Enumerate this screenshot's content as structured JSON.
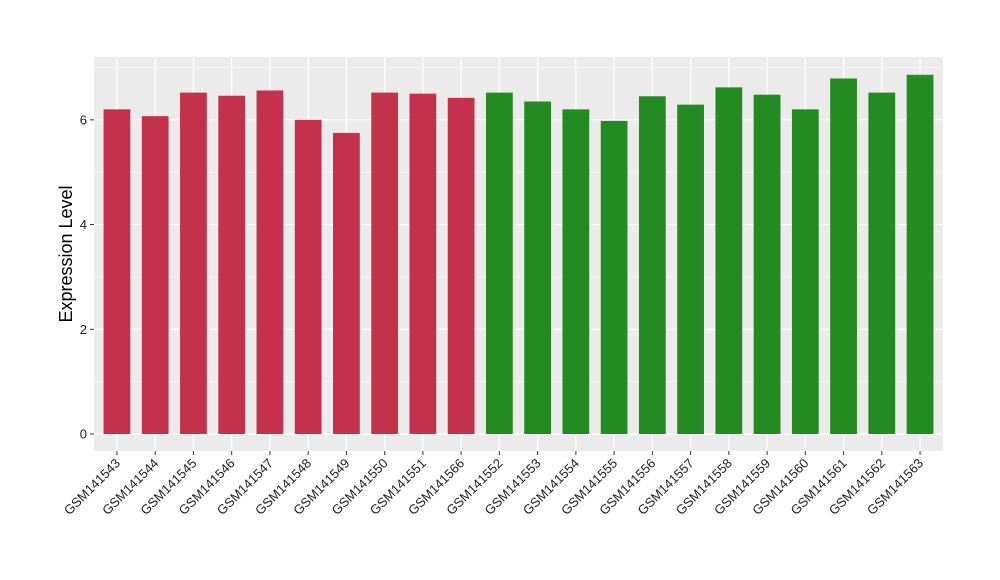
{
  "chart_data": {
    "type": "bar",
    "title": "",
    "xlabel": "",
    "ylabel": "Expression Level",
    "ylim": [
      0,
      7.2
    ],
    "yticks": [
      0,
      2,
      4,
      6
    ],
    "grid": true,
    "legend": "none",
    "categories": [
      "GSM141543",
      "GSM141544",
      "GSM141545",
      "GSM141546",
      "GSM141547",
      "GSM141548",
      "GSM141549",
      "GSM141550",
      "GSM141551",
      "GSM141566",
      "GSM141552",
      "GSM141553",
      "GSM141554",
      "GSM141555",
      "GSM141556",
      "GSM141557",
      "GSM141558",
      "GSM141559",
      "GSM141560",
      "GSM141561",
      "GSM141562",
      "GSM141563"
    ],
    "values": [
      6.2,
      6.07,
      6.52,
      6.46,
      6.56,
      6.0,
      5.75,
      6.52,
      6.5,
      6.42,
      6.52,
      6.35,
      6.2,
      5.98,
      6.45,
      6.29,
      6.62,
      6.48,
      6.2,
      6.79,
      6.52,
      6.86
    ],
    "bar_colors": [
      "#c4314b",
      "#c4314b",
      "#c4314b",
      "#c4314b",
      "#c4314b",
      "#c4314b",
      "#c4314b",
      "#c4314b",
      "#c4314b",
      "#c4314b",
      "#228b22",
      "#228b22",
      "#228b22",
      "#228b22",
      "#228b22",
      "#228b22",
      "#228b22",
      "#228b22",
      "#228b22",
      "#228b22",
      "#228b22",
      "#228b22"
    ],
    "panel_background": "#ebebeb",
    "grid_color": "#ffffff"
  }
}
